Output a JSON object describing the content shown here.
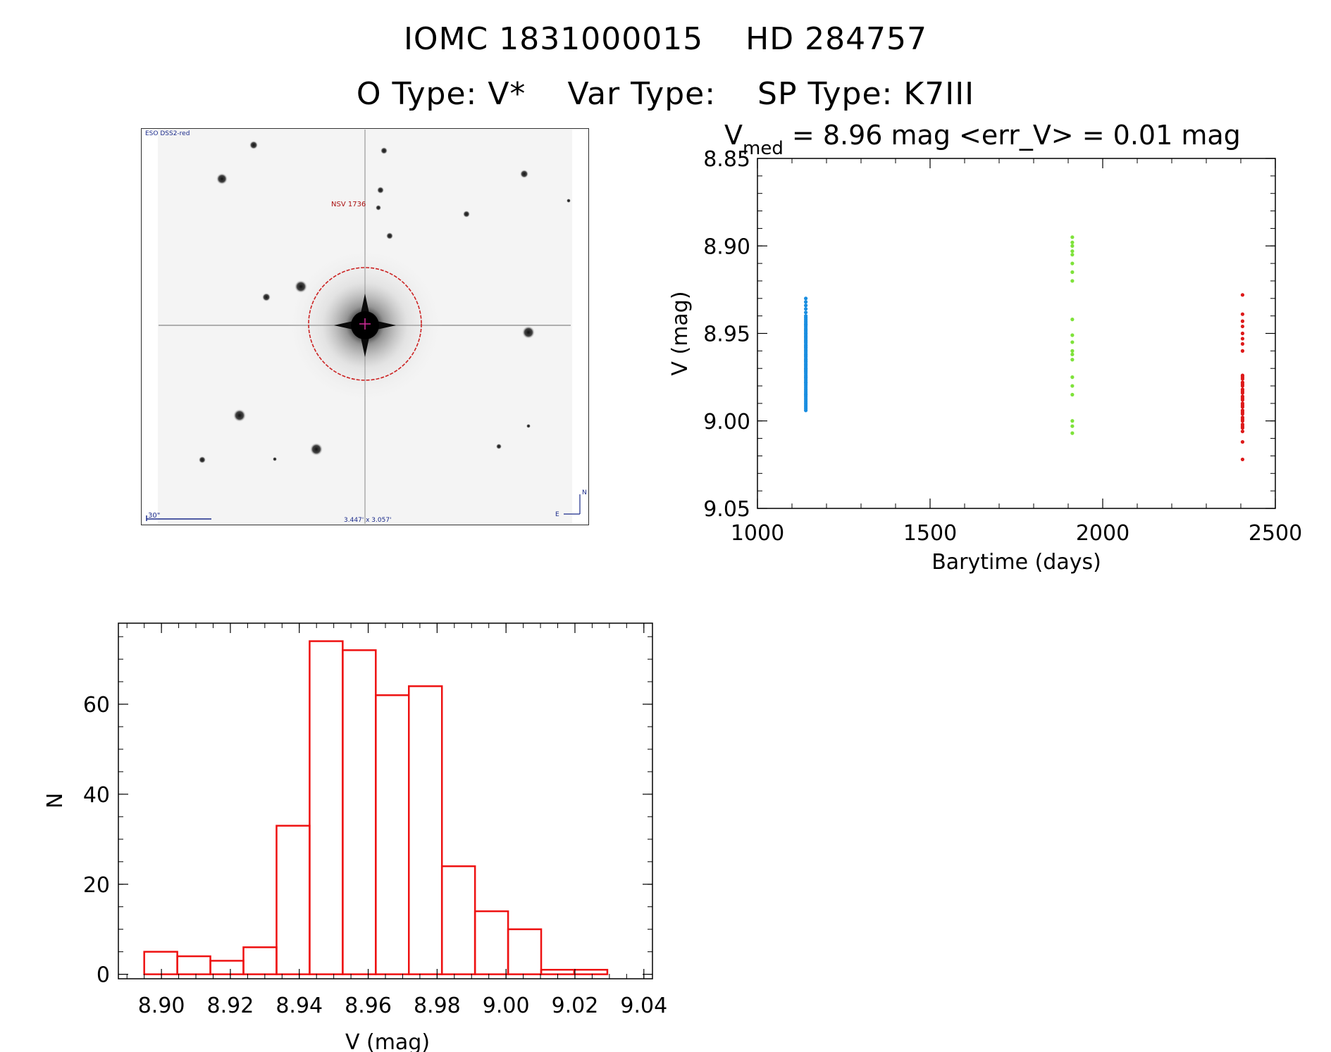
{
  "header": {
    "title_line1": "IOMC 1831000015    HD 284757",
    "otype": "O Type: V*",
    "vartype": "Var Type:",
    "sptype": "SP Type: K7III"
  },
  "stamp": {
    "survey_label": "ESO DSS2-red",
    "object_label": "NSV 1736",
    "scale_label": "30\"",
    "size_label": "3.447' x 3.057'",
    "north_label": "N",
    "east_label": "E",
    "colors": {
      "circle": "#cc2222",
      "labels": "#1a2a8a",
      "object": "#aa1111"
    }
  },
  "chart_data": [
    {
      "type": "scatter",
      "title_main": "V",
      "title_sub": "med",
      "title_rest": " = 8.96 mag <err_V> = 0.01 mag",
      "xlabel": "Barytime (days)",
      "ylabel": "V (mag)",
      "xlim": [
        1000,
        2500
      ],
      "ylim": [
        9.05,
        8.85
      ],
      "xticks": [
        1000,
        1500,
        2000,
        2500
      ],
      "yticks": [
        "8.85",
        "8.90",
        "8.95",
        "9.00",
        "9.05"
      ],
      "series": [
        {
          "color": "#1a8ee0",
          "x": [
            1140,
            1140,
            1140,
            1140,
            1140,
            1140,
            1140,
            1140,
            1140,
            1140,
            1140,
            1140,
            1140,
            1140,
            1140,
            1140,
            1140,
            1140,
            1140,
            1140,
            1140,
            1140,
            1140,
            1140,
            1140,
            1140,
            1140,
            1140,
            1140,
            1140,
            1140,
            1140,
            1140,
            1140,
            1140,
            1140,
            1140,
            1140,
            1140,
            1140,
            1140,
            1140,
            1140,
            1140,
            1140,
            1140,
            1140,
            1140,
            1140,
            1140,
            1140,
            1140,
            1140,
            1140,
            1140,
            1140,
            1140,
            1140,
            1140,
            1140,
            1140,
            1140,
            1140,
            1140,
            1140,
            1140,
            1140,
            1140,
            1140,
            1140,
            1140,
            1140,
            1140,
            1140,
            1140,
            1140,
            1140,
            1140,
            1140,
            1140
          ],
          "y": [
            8.93,
            8.932,
            8.934,
            8.936,
            8.938,
            8.94,
            8.941,
            8.942,
            8.943,
            8.944,
            8.945,
            8.946,
            8.947,
            8.948,
            8.949,
            8.95,
            8.951,
            8.952,
            8.953,
            8.954,
            8.955,
            8.956,
            8.957,
            8.958,
            8.959,
            8.96,
            8.961,
            8.962,
            8.963,
            8.964,
            8.965,
            8.966,
            8.967,
            8.968,
            8.969,
            8.97,
            8.971,
            8.972,
            8.973,
            8.974,
            8.975,
            8.976,
            8.977,
            8.978,
            8.979,
            8.98,
            8.981,
            8.982,
            8.983,
            8.984,
            8.985,
            8.986,
            8.987,
            8.988,
            8.989,
            8.99,
            8.991,
            8.992,
            8.993,
            8.994,
            8.95,
            8.955,
            8.96,
            8.965,
            8.97,
            8.975,
            8.945,
            8.952,
            8.958,
            8.962,
            8.968,
            8.972,
            8.948,
            8.954,
            8.957,
            8.963,
            8.966,
            8.971,
            8.978,
            8.985
          ]
        },
        {
          "color": "#7ee23a",
          "x": [
            1912,
            1912,
            1912,
            1912,
            1912,
            1912,
            1912,
            1912,
            1912,
            1912,
            1912,
            1912,
            1912,
            1912,
            1912,
            1912,
            1912,
            1912,
            1912,
            1912
          ],
          "y": [
            8.895,
            8.898,
            8.9,
            8.903,
            8.905,
            8.91,
            8.915,
            8.92,
            8.942,
            8.951,
            8.955,
            8.96,
            8.962,
            8.965,
            8.975,
            8.98,
            8.985,
            9.0,
            9.003,
            9.007
          ]
        },
        {
          "color": "#dd1a1a",
          "x": [
            2405,
            2405,
            2405,
            2405,
            2405,
            2405,
            2405,
            2405,
            2405,
            2405,
            2405,
            2405,
            2405,
            2405,
            2405,
            2405,
            2405,
            2405,
            2405,
            2405,
            2405,
            2405,
            2405,
            2405,
            2405,
            2405,
            2405,
            2405,
            2405,
            2405,
            2405,
            2405,
            2405,
            2405,
            2405
          ],
          "y": [
            8.928,
            8.939,
            8.943,
            8.946,
            8.95,
            8.953,
            8.956,
            8.96,
            8.974,
            8.976,
            8.978,
            8.98,
            8.982,
            8.984,
            8.986,
            8.988,
            8.99,
            8.992,
            8.994,
            8.996,
            8.998,
            9.0,
            9.002,
            9.004,
            9.006,
            9.012,
            9.022,
            8.975,
            8.979,
            8.983,
            8.987,
            8.991,
            8.995,
            8.999,
            9.003
          ]
        }
      ]
    },
    {
      "type": "bar",
      "xlabel": "V (mag)",
      "ylabel": "N",
      "xlim": [
        8.8875,
        9.0425
      ],
      "ylim": [
        -1,
        78
      ],
      "xticks": [
        "8.90",
        "8.92",
        "8.94",
        "8.96",
        "8.98",
        "9.00",
        "9.02",
        "9.04"
      ],
      "yticks": [
        "0",
        "20",
        "40",
        "60"
      ],
      "bin_edges": [
        8.895,
        8.9046,
        8.9142,
        8.9238,
        8.9334,
        8.943,
        8.9526,
        8.9622,
        8.9718,
        8.9814,
        8.991,
        9.0006,
        9.0102,
        9.0198,
        9.0294
      ],
      "values": [
        5,
        4,
        3,
        6,
        33,
        74,
        72,
        62,
        64,
        24,
        14,
        10,
        1,
        1
      ],
      "color": "#ee1111"
    }
  ]
}
